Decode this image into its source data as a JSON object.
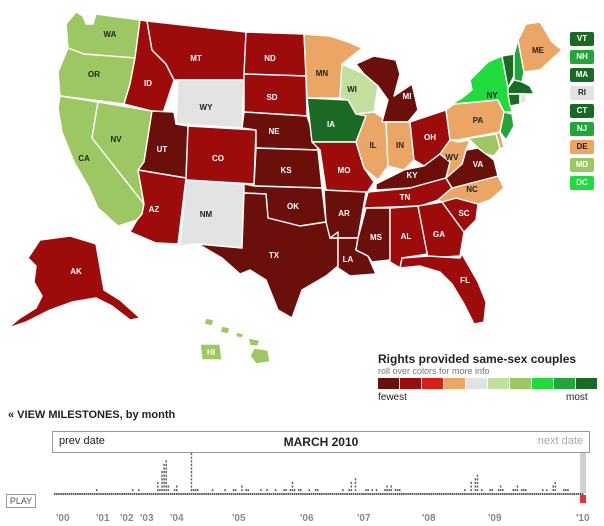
{
  "colors": {
    "fewest": "#6b0f0b",
    "level2": "#9e0b0b",
    "level3": "#d71e1e",
    "level4": "#eba564",
    "level5": "#e3e3e3",
    "level6": "#c2df9e",
    "level7": "#9dc762",
    "level8": "#1fdb3c",
    "level9": "#22a63a",
    "most": "#1b6a24"
  },
  "states": [
    {
      "code": "WA",
      "level": 7
    },
    {
      "code": "OR",
      "level": 7
    },
    {
      "code": "CA",
      "level": 7
    },
    {
      "code": "NV",
      "level": 7
    },
    {
      "code": "ID",
      "level": 2
    },
    {
      "code": "MT",
      "level": 2
    },
    {
      "code": "WY",
      "level": 5
    },
    {
      "code": "UT",
      "level": 1
    },
    {
      "code": "CO",
      "level": 2
    },
    {
      "code": "AZ",
      "level": 2
    },
    {
      "code": "NM",
      "level": 5
    },
    {
      "code": "ND",
      "level": 2
    },
    {
      "code": "SD",
      "level": 2
    },
    {
      "code": "NE",
      "level": 1
    },
    {
      "code": "KS",
      "level": 1
    },
    {
      "code": "OK",
      "level": 1
    },
    {
      "code": "TX",
      "level": 1
    },
    {
      "code": "MN",
      "level": 4
    },
    {
      "code": "IA",
      "level": 10
    },
    {
      "code": "MO",
      "level": 2
    },
    {
      "code": "AR",
      "level": 1
    },
    {
      "code": "LA",
      "level": 1
    },
    {
      "code": "WI",
      "level": 6
    },
    {
      "code": "IL",
      "level": 4
    },
    {
      "code": "MI",
      "level": 1
    },
    {
      "code": "IN",
      "level": 4
    },
    {
      "code": "OH",
      "level": 2
    },
    {
      "code": "KY",
      "level": 1
    },
    {
      "code": "TN",
      "level": 2
    },
    {
      "code": "MS",
      "level": 1
    },
    {
      "code": "AL",
      "level": 2
    },
    {
      "code": "GA",
      "level": 2
    },
    {
      "code": "FL",
      "level": 2
    },
    {
      "code": "SC",
      "level": 2
    },
    {
      "code": "NC",
      "level": 4
    },
    {
      "code": "VA",
      "level": 1
    },
    {
      "code": "WV",
      "level": 4
    },
    {
      "code": "PA",
      "level": 4
    },
    {
      "code": "NY",
      "level": 8
    },
    {
      "code": "ME",
      "level": 4
    },
    {
      "code": "AK",
      "level": 2
    },
    {
      "code": "HI",
      "level": 7
    }
  ],
  "small_states": [
    {
      "code": "VT",
      "level": 10
    },
    {
      "code": "NH",
      "level": 9
    },
    {
      "code": "MA",
      "level": 10
    },
    {
      "code": "RI",
      "level": 5
    },
    {
      "code": "CT",
      "level": 10
    },
    {
      "code": "NJ",
      "level": 9
    },
    {
      "code": "DE",
      "level": 4
    },
    {
      "code": "MD",
      "level": 7
    },
    {
      "code": "DC",
      "level": 8
    }
  ],
  "legend": {
    "title": "Rights provided same-sex couples",
    "subtitle": "roll over colors for more info",
    "fewest": "fewest",
    "most": "most"
  },
  "milestones_link": "« VIEW MILESTONES, by month",
  "timeline": {
    "prev": "prev date",
    "current": "MARCH 2010",
    "next": "next date",
    "play": "PLAY",
    "years": [
      "'00",
      "'01",
      "'02",
      "'03",
      "'04",
      "'05",
      "'06",
      "'07",
      "'08",
      "'09",
      "'10"
    ],
    "month_counts": [
      0,
      0,
      0,
      0,
      0,
      0,
      0,
      0,
      0,
      0,
      0,
      0,
      0,
      0,
      0,
      0,
      0,
      0,
      0,
      0,
      1,
      0,
      0,
      0,
      0,
      0,
      0,
      0,
      0,
      0,
      0,
      0,
      0,
      0,
      0,
      0,
      0,
      1,
      0,
      0,
      1,
      0,
      0,
      0,
      0,
      0,
      0,
      0,
      0,
      3,
      1,
      6,
      8,
      9,
      2,
      0,
      0,
      1,
      2,
      0,
      0,
      0,
      0,
      0,
      0,
      11,
      1,
      1,
      1,
      0,
      0,
      0,
      0,
      0,
      0,
      1,
      0,
      0,
      0,
      0,
      0,
      1,
      0,
      0,
      0,
      1,
      1,
      0,
      0,
      2,
      0,
      1,
      1,
      0,
      0,
      0,
      0,
      0,
      1,
      0,
      0,
      1,
      0,
      0,
      0,
      1,
      0,
      0,
      0,
      1,
      1,
      0,
      1,
      3,
      1,
      0,
      1,
      1,
      0,
      0,
      0,
      1,
      0,
      0,
      1,
      1,
      0,
      0,
      0,
      0,
      0,
      0,
      0,
      0,
      0,
      0,
      0,
      1,
      0,
      0,
      1,
      3,
      0,
      4,
      0,
      0,
      0,
      0,
      1,
      1,
      0,
      1,
      0,
      1,
      0,
      0,
      0,
      1,
      2,
      1,
      2,
      0,
      1,
      1,
      1,
      0,
      0,
      0,
      0,
      0,
      0,
      0,
      0,
      0,
      0,
      0,
      0,
      0,
      0,
      0,
      0,
      0,
      0,
      0,
      0,
      0,
      0,
      0,
      0,
      0,
      0,
      0,
      0,
      0,
      0,
      1,
      0,
      0,
      3,
      0,
      4,
      5,
      0,
      1,
      0,
      0,
      0,
      1,
      1,
      0,
      0,
      1,
      2,
      1,
      0,
      0,
      0,
      0,
      1,
      1,
      2,
      0,
      1,
      1,
      1,
      0,
      0,
      0,
      0,
      0,
      0,
      0,
      1,
      0,
      1,
      0,
      0,
      2,
      3,
      0,
      0,
      0,
      1,
      1,
      1,
      0,
      0,
      0,
      0,
      0,
      0,
      0
    ]
  }
}
